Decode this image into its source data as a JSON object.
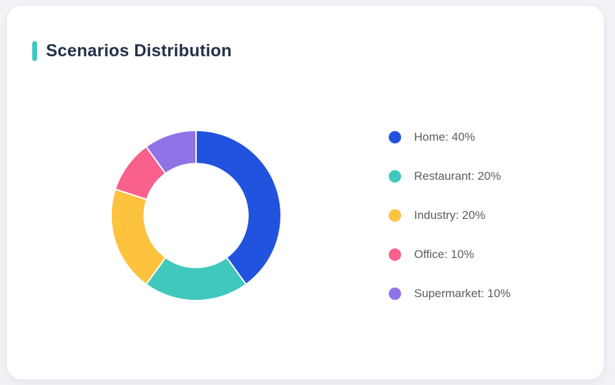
{
  "header": {
    "title": "Scenarios Distribution",
    "accent_color": "#3DC8C0"
  },
  "colors": {
    "page_background": "#F1F2F6",
    "card_background": "#FFFFFF",
    "title_text": "#233248",
    "legend_text": "#5C5C5C",
    "slice_gap": "#FFFFFF"
  },
  "chart_data": {
    "type": "pie",
    "subtype": "donut",
    "title": "Scenarios Distribution",
    "labels": [
      "Home",
      "Restaurant",
      "Industry",
      "Office",
      "Supermarket"
    ],
    "values": [
      40,
      20,
      20,
      10,
      10
    ],
    "unit": "%",
    "colors": [
      "#2253DF",
      "#41C8BC",
      "#FDC33E",
      "#F9608C",
      "#9173E8"
    ],
    "start_angle_deg": 0,
    "direction": "clockwise",
    "inner_radius_ratio": 0.61,
    "grid": false,
    "legend_position": "right",
    "legend": [
      {
        "label": "Home",
        "value": 40,
        "text": "Home: 40%",
        "color": "#2253DF"
      },
      {
        "label": "Restaurant",
        "value": 20,
        "text": "Restaurant: 20%",
        "color": "#41C8BC"
      },
      {
        "label": "Industry",
        "value": 20,
        "text": "Industry: 20%",
        "color": "#FDC33E"
      },
      {
        "label": "Office",
        "value": 10,
        "text": "Office: 10%",
        "color": "#F9608C"
      },
      {
        "label": "Supermarket",
        "value": 10,
        "text": "Supermarket: 10%",
        "color": "#9173E8"
      }
    ]
  }
}
